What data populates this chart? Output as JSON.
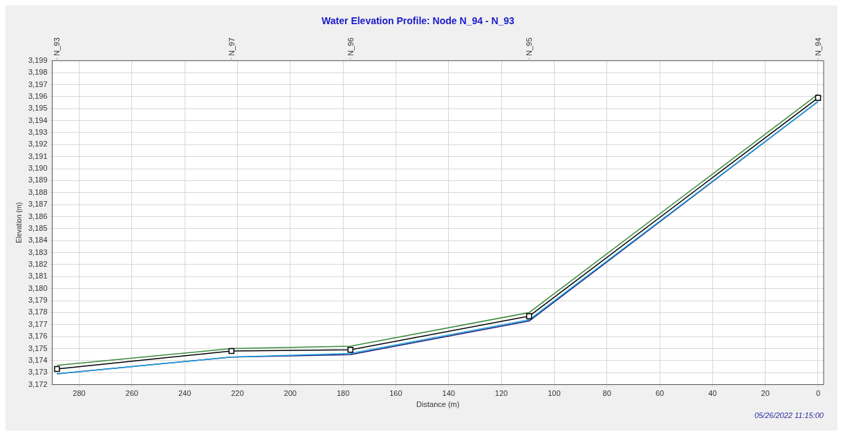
{
  "chart_data": {
    "type": "line",
    "title": "Water Elevation Profile: Node N_94 - N_93",
    "xlabel": "Distance (m)",
    "ylabel": "Elevation (m)",
    "x": [
      288.4,
      222.3,
      177.2,
      109.5,
      0
    ],
    "series": [
      {
        "color": "#3a8a3a",
        "values": [
          3173.6,
          3175.0,
          3175.2,
          3178.0,
          3196.2
        ]
      },
      {
        "color": "#000000",
        "marker": "square",
        "values": [
          3173.3,
          3174.8,
          3174.9,
          3177.7,
          3195.9
        ]
      },
      {
        "color": "#1ea0e0",
        "values": [
          3172.9,
          3174.3,
          3174.6,
          3177.4,
          3195.6
        ]
      },
      {
        "color": "#1a1a70",
        "values": [
          3172.9,
          3174.3,
          3174.5,
          3177.3,
          3195.6
        ]
      }
    ],
    "xlim": [
      290.2,
      -2.1
    ],
    "xticks": [
      280,
      260,
      240,
      220,
      200,
      180,
      160,
      140,
      120,
      100,
      80,
      60,
      40,
      20,
      0
    ],
    "ylim": [
      3172,
      3199
    ],
    "yticks": [
      {
        "value": 3172,
        "label": "3,172"
      },
      {
        "value": 3173,
        "label": "3,173"
      },
      {
        "value": 3174,
        "label": "3,174"
      },
      {
        "value": 3175,
        "label": "3,175"
      },
      {
        "value": 3176,
        "label": "3,176"
      },
      {
        "value": 3177,
        "label": "3,177"
      },
      {
        "value": 3178,
        "label": "3,178"
      },
      {
        "value": 3179,
        "label": "3,179"
      },
      {
        "value": 3180,
        "label": "3,180"
      },
      {
        "value": 3181,
        "label": "3,181"
      },
      {
        "value": 3182,
        "label": "3,182"
      },
      {
        "value": 3183,
        "label": "3,183"
      },
      {
        "value": 3184,
        "label": "3,184"
      },
      {
        "value": 3185,
        "label": "3,185"
      },
      {
        "value": 3186,
        "label": "3,186"
      },
      {
        "value": 3187,
        "label": "3,187"
      },
      {
        "value": 3188,
        "label": "3,188"
      },
      {
        "value": 3189,
        "label": "3,189"
      },
      {
        "value": 3190,
        "label": "3,190"
      },
      {
        "value": 3191,
        "label": "3,191"
      },
      {
        "value": 3192,
        "label": "3,192"
      },
      {
        "value": 3193,
        "label": "3,193"
      },
      {
        "value": 3194,
        "label": "3,194"
      },
      {
        "value": 3195,
        "label": "3,195"
      },
      {
        "value": 3196,
        "label": "3,196"
      },
      {
        "value": 3197,
        "label": "3,197"
      },
      {
        "value": 3198,
        "label": "3,198"
      },
      {
        "value": 3199,
        "label": "3,199"
      }
    ],
    "grid": true,
    "legend": false,
    "line_style": "solid",
    "annotations": [
      {
        "text": "N_93",
        "x": 288.4
      },
      {
        "text": "N_97",
        "x": 222.3
      },
      {
        "text": "N_96",
        "x": 177.2
      },
      {
        "text": "N_95",
        "x": 109.5
      },
      {
        "text": "N_94",
        "x": 0
      },
      "05/26/2022 11:15:00"
    ]
  }
}
